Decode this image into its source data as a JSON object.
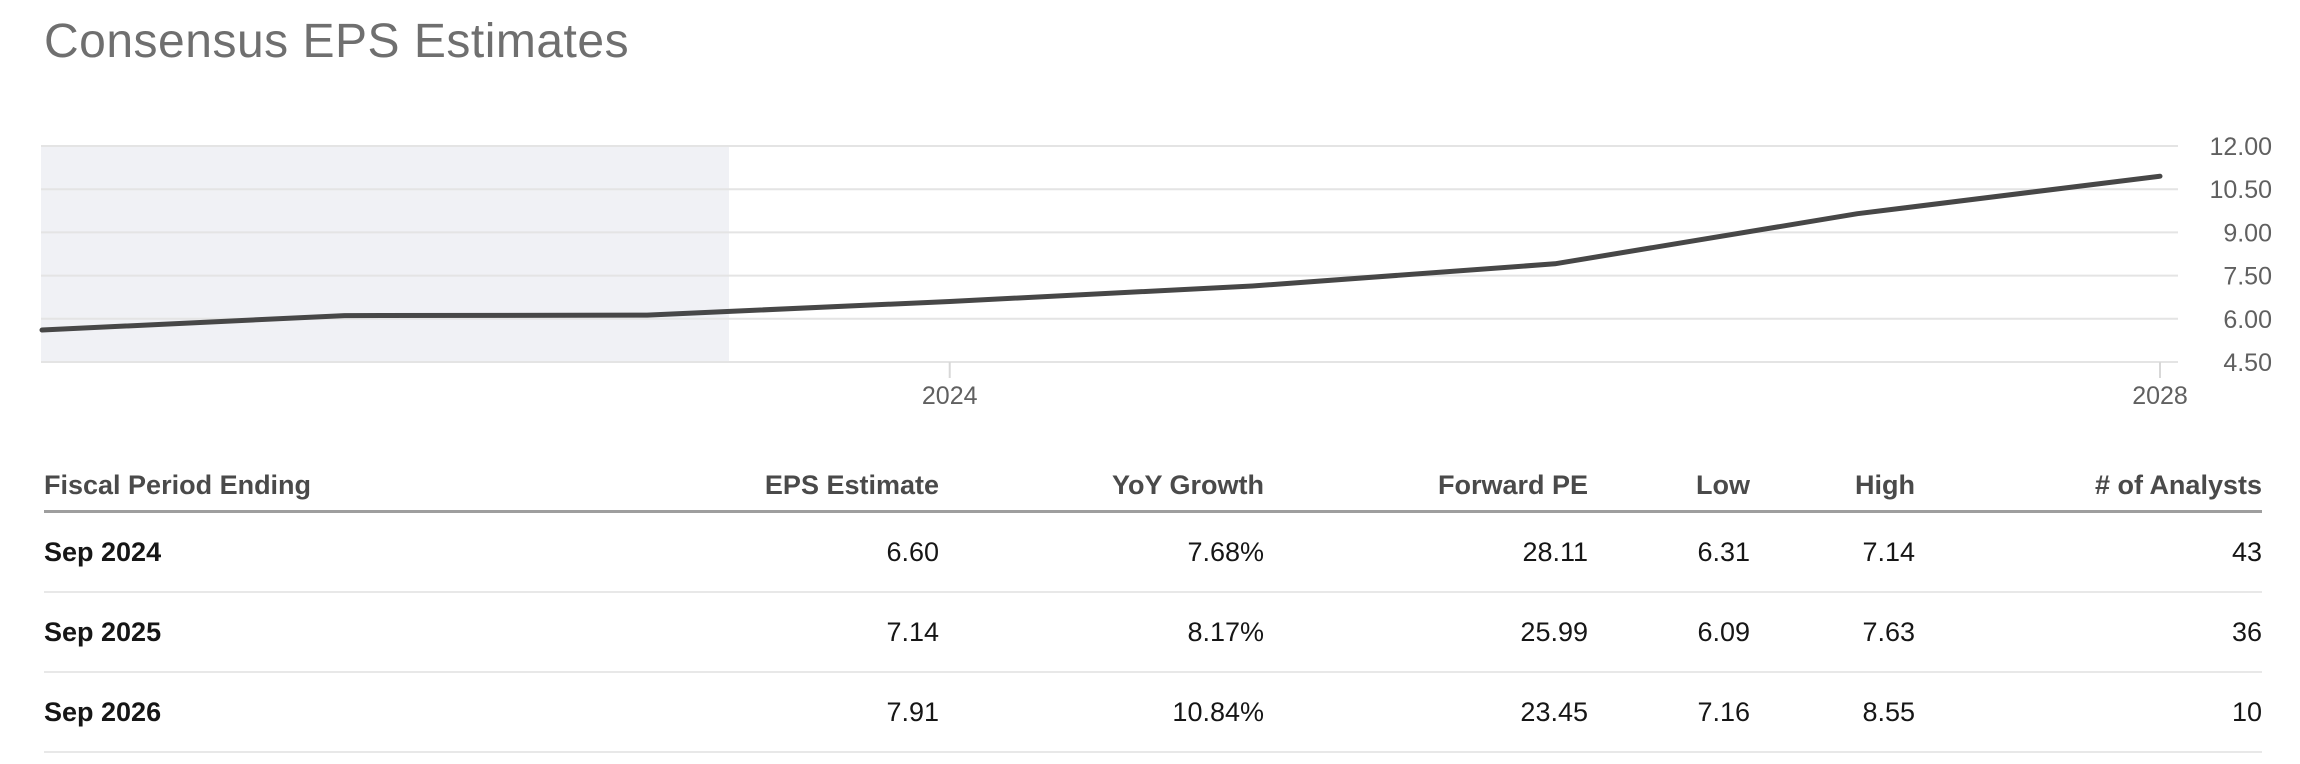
{
  "page": {
    "title": "Consensus EPS Estimates"
  },
  "chart_data": {
    "type": "line",
    "series_name": "Consensus EPS",
    "x": [
      2021,
      2022,
      2023,
      2024,
      2025,
      2026,
      2027,
      2028
    ],
    "x_meaning": "fiscal year ending September",
    "values": [
      5.61,
      6.11,
      6.13,
      6.6,
      7.14,
      7.91,
      9.65,
      10.95
    ],
    "title": "",
    "xlabel": "",
    "ylabel": "",
    "ylim": [
      4.5,
      12.0
    ],
    "yticks": [
      12.0,
      10.5,
      9.0,
      7.5,
      6.0,
      4.5
    ],
    "ytick_labels": [
      "12.00",
      "10.50",
      "9.00",
      "7.50",
      "6.00",
      "4.50"
    ],
    "ytick_side": "right",
    "xticks": [
      2024,
      2028
    ],
    "xtick_labels": [
      "2024",
      "2028"
    ],
    "grid": true,
    "legend": false,
    "shaded_region": {
      "x0": 2021.0,
      "x1": 2023.27,
      "color": "#f0f1f5"
    },
    "line_color": "#474747",
    "grid_color": "#e4e4e4",
    "tick_color": "#d8d8d8",
    "axis_label_color": "#606060"
  },
  "table": {
    "headers": [
      "Fiscal Period Ending",
      "EPS Estimate",
      "YoY Growth",
      "Forward PE",
      "Low",
      "High",
      "# of Analysts"
    ],
    "rows": [
      [
        "Sep 2024",
        "6.60",
        "7.68%",
        "28.11",
        "6.31",
        "7.14",
        "43"
      ],
      [
        "Sep 2025",
        "7.14",
        "8.17%",
        "25.99",
        "6.09",
        "7.63",
        "36"
      ],
      [
        "Sep 2026",
        "7.91",
        "10.84%",
        "23.45",
        "7.16",
        "8.55",
        "10"
      ]
    ]
  }
}
